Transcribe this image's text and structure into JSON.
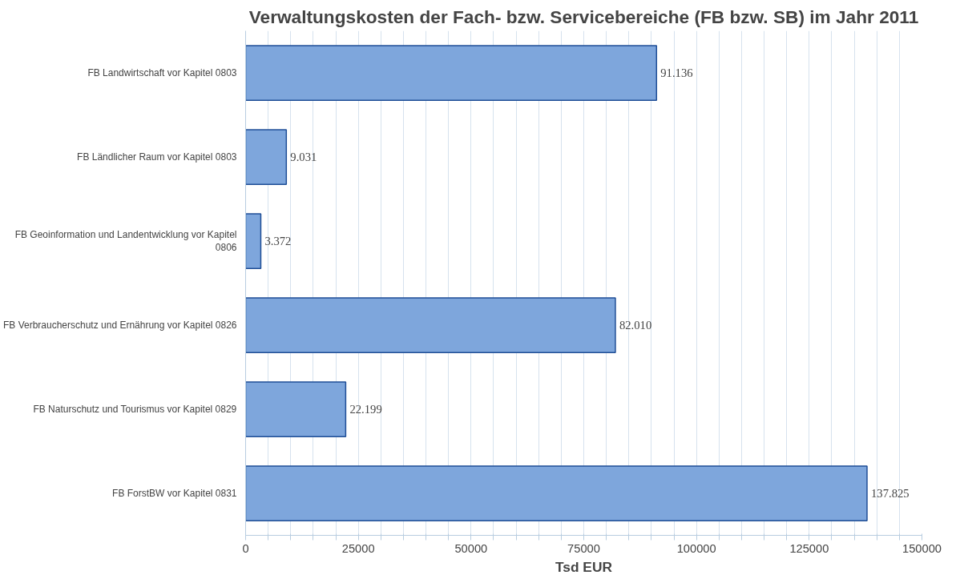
{
  "chart_data": {
    "type": "bar",
    "orientation": "horizontal",
    "title": "Verwaltungskosten der Fach- bzw. Servicebereiche (FB bzw. SB) im Jahr 2011",
    "xlabel": "Tsd EUR",
    "categories": [
      "FB Landwirtschaft vor Kapitel 0803",
      "FB Ländlicher Raum vor Kapitel 0803",
      "FB Geoinformation und Landentwicklung vor Kapitel 0806",
      "FB Verbraucherschutz und Ernährung vor Kapitel 0826",
      "FB Naturschutz und Tourismus vor Kapitel 0829",
      "FB ForstBW vor Kapitel 0831"
    ],
    "values": [
      91136,
      9031,
      3372,
      82010,
      22199,
      137825
    ],
    "value_labels": [
      "91.136",
      "9.031",
      "3.372",
      "82.010",
      "22.199",
      "137.825"
    ],
    "color": "#7ea6dc",
    "xlim": [
      0,
      150000
    ],
    "xticks": [
      0,
      {
        "value": 5000,
        "label": null
      },
      {
        "value": 10000,
        "label": null
      },
      {
        "value": 15000,
        "label": null
      },
      {
        "value": 20000,
        "label": null
      },
      25000,
      {
        "value": 30000,
        "label": null
      },
      {
        "value": 35000,
        "label": null
      },
      {
        "value": 40000,
        "label": null
      },
      {
        "value": 45000,
        "label": null
      },
      50000,
      {
        "value": 55000,
        "label": null
      },
      {
        "value": 60000,
        "label": null
      },
      {
        "value": 65000,
        "label": null
      },
      {
        "value": 70000,
        "label": null
      },
      75000,
      {
        "value": 80000,
        "label": null
      },
      {
        "value": 85000,
        "label": null
      },
      {
        "value": 90000,
        "label": null
      },
      {
        "value": 95000,
        "label": null
      },
      100000,
      {
        "value": 105000,
        "label": null
      },
      {
        "value": 110000,
        "label": null
      },
      {
        "value": 115000,
        "label": null
      },
      {
        "value": 120000,
        "label": null
      },
      125000,
      {
        "value": 130000,
        "label": null
      },
      {
        "value": 135000,
        "label": null
      },
      {
        "value": 140000,
        "label": null
      },
      {
        "value": 145000,
        "label": null
      },
      150000
    ],
    "grid": "x"
  }
}
